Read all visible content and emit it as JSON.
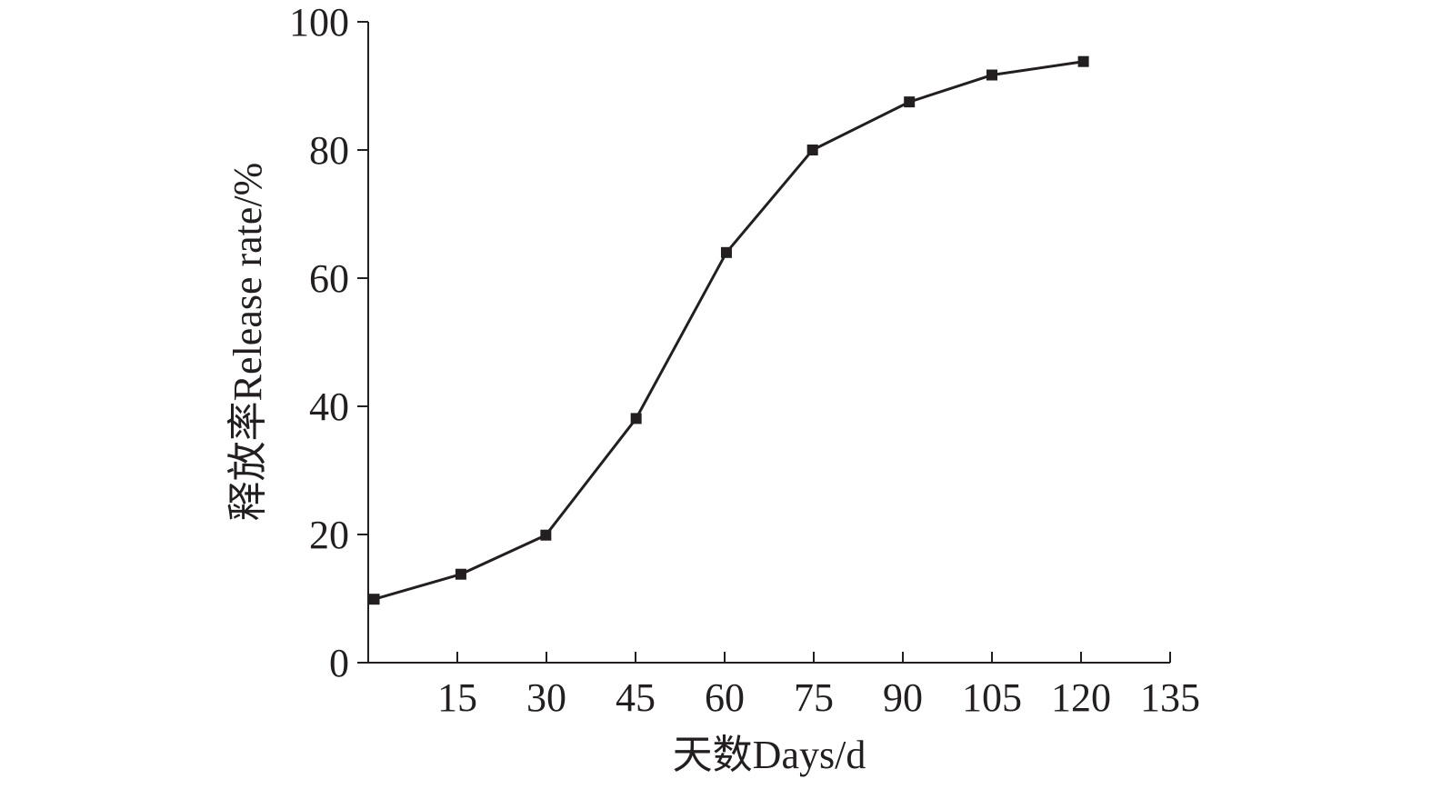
{
  "chart_data": {
    "type": "line",
    "title": "",
    "xlabel": "天数Days/d",
    "ylabel": "释放率Release rate/%",
    "x_ticks": [
      15,
      30,
      45,
      60,
      75,
      90,
      105,
      120,
      135
    ],
    "y_ticks": [
      0,
      20,
      40,
      60,
      80,
      100
    ],
    "xlim": [
      0,
      135
    ],
    "ylim": [
      0,
      100
    ],
    "grid": false,
    "legend": "none",
    "line_color": "#231f20",
    "series": [
      {
        "marker": "square",
        "x": [
          1,
          15.6,
          29.9,
          45.1,
          60.3,
          74.8,
          91.1,
          105,
          120.4
        ],
        "y": [
          9.9,
          13.8,
          19.9,
          38.1,
          64,
          80,
          87.5,
          91.7,
          93.8
        ]
      }
    ]
  }
}
